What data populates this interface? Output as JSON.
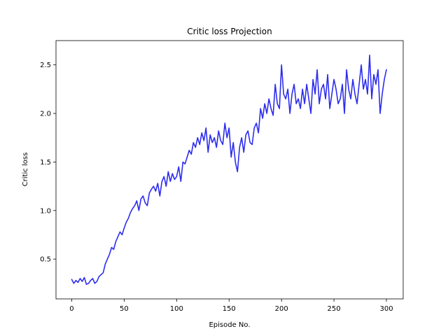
{
  "chart_data": {
    "type": "line",
    "title": "Critic loss Projection",
    "xlabel": "Episode No.",
    "ylabel": "Critic loss",
    "xlim": [
      -15,
      316
    ],
    "ylim": [
      0.09,
      2.75
    ],
    "xticks": [
      0,
      50,
      100,
      150,
      200,
      250,
      300
    ],
    "yticks": [
      0.5,
      1.0,
      1.5,
      2.0,
      2.5
    ],
    "xtick_labels": [
      "0",
      "50",
      "100",
      "150",
      "200",
      "250",
      "300"
    ],
    "ytick_labels": [
      "0.5",
      "1.0",
      "1.5",
      "2.0",
      "2.5"
    ],
    "grid": false,
    "series": [
      {
        "color": "#2222ee",
        "x": [
          0,
          2,
          4,
          6,
          8,
          10,
          12,
          14,
          16,
          18,
          20,
          22,
          24,
          26,
          28,
          30,
          32,
          34,
          36,
          38,
          40,
          42,
          44,
          46,
          48,
          50,
          52,
          54,
          56,
          58,
          60,
          62,
          64,
          66,
          68,
          70,
          72,
          74,
          76,
          78,
          80,
          82,
          84,
          86,
          88,
          90,
          92,
          94,
          96,
          98,
          100,
          102,
          104,
          106,
          108,
          110,
          112,
          114,
          116,
          118,
          120,
          122,
          124,
          126,
          128,
          130,
          132,
          134,
          136,
          138,
          140,
          142,
          144,
          146,
          148,
          150,
          152,
          154,
          156,
          158,
          160,
          162,
          164,
          166,
          168,
          170,
          172,
          174,
          176,
          178,
          180,
          182,
          184,
          186,
          188,
          190,
          192,
          194,
          196,
          198,
          200,
          202,
          204,
          206,
          208,
          210,
          212,
          214,
          216,
          218,
          220,
          222,
          224,
          226,
          228,
          230,
          232,
          234,
          236,
          238,
          240,
          242,
          244,
          246,
          248,
          250,
          252,
          254,
          256,
          258,
          260,
          262,
          264,
          266,
          268,
          270,
          272,
          274,
          276,
          278,
          280,
          282,
          284,
          286,
          288,
          290,
          292,
          294,
          296,
          298,
          300
        ],
        "y": [
          0.29,
          0.25,
          0.28,
          0.26,
          0.3,
          0.27,
          0.31,
          0.24,
          0.25,
          0.28,
          0.3,
          0.25,
          0.27,
          0.32,
          0.34,
          0.36,
          0.45,
          0.5,
          0.55,
          0.62,
          0.6,
          0.68,
          0.73,
          0.78,
          0.75,
          0.82,
          0.88,
          0.92,
          0.98,
          1.02,
          1.05,
          1.1,
          1.0,
          1.12,
          1.15,
          1.08,
          1.05,
          1.18,
          1.22,
          1.25,
          1.2,
          1.28,
          1.15,
          1.3,
          1.35,
          1.25,
          1.4,
          1.3,
          1.38,
          1.32,
          1.35,
          1.45,
          1.3,
          1.5,
          1.48,
          1.55,
          1.62,
          1.58,
          1.7,
          1.65,
          1.75,
          1.68,
          1.8,
          1.72,
          1.85,
          1.6,
          1.78,
          1.7,
          1.75,
          1.65,
          1.82,
          1.72,
          1.68,
          1.9,
          1.75,
          1.85,
          1.55,
          1.7,
          1.5,
          1.4,
          1.65,
          1.75,
          1.6,
          1.78,
          1.82,
          1.7,
          1.68,
          1.85,
          1.9,
          1.8,
          2.05,
          1.95,
          2.1,
          2.0,
          2.15,
          2.05,
          1.98,
          2.3,
          2.1,
          2.05,
          2.5,
          2.2,
          2.15,
          2.25,
          2.0,
          2.2,
          2.3,
          2.1,
          2.15,
          2.05,
          2.25,
          2.1,
          2.3,
          2.15,
          2.0,
          2.35,
          2.2,
          2.45,
          2.1,
          2.25,
          2.3,
          2.15,
          2.4,
          2.05,
          2.2,
          2.35,
          2.25,
          2.1,
          2.15,
          2.3,
          2.0,
          2.45,
          2.25,
          2.15,
          2.35,
          2.2,
          2.1,
          2.3,
          2.5,
          2.25,
          2.35,
          2.2,
          2.6,
          2.15,
          2.4,
          2.3,
          2.45,
          2.0,
          2.2,
          2.35,
          2.45
        ]
      }
    ]
  }
}
